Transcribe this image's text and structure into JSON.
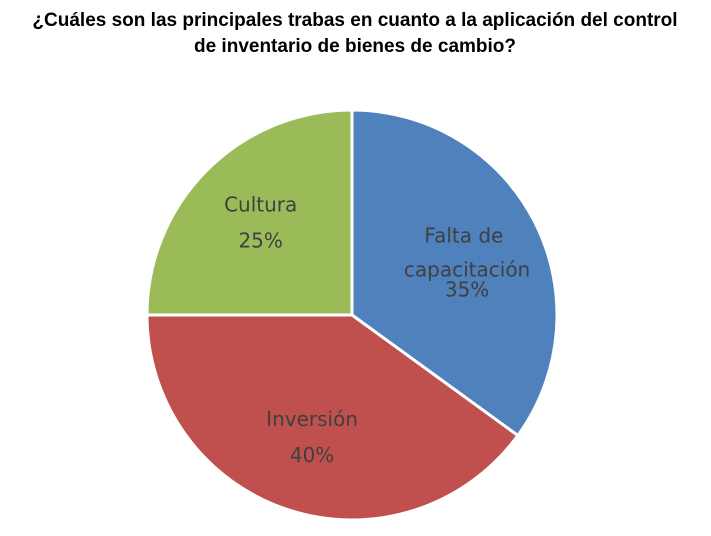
{
  "chart_data": {
    "type": "pie",
    "title": [
      "¿Cuáles son las principales trabas en cuanto a la aplicación del control",
      "de inventario de bienes de cambio?"
    ],
    "categories": [
      "Falta de capacitación",
      "Inversión",
      "Cultura"
    ],
    "values": [
      35,
      40,
      25
    ],
    "value_labels": [
      "35%",
      "40%",
      "25%"
    ],
    "colors": [
      "#4f81bd",
      "#c0504d",
      "#9bbb59"
    ]
  }
}
